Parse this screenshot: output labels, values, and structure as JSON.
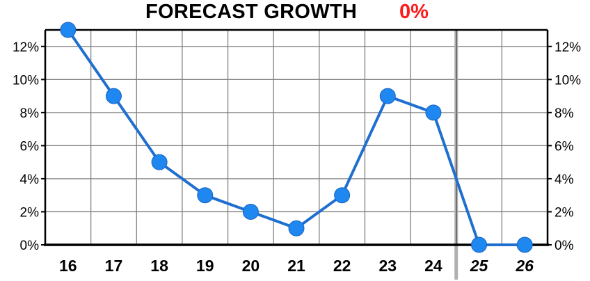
{
  "title": {
    "main": "FORECAST GROWTH",
    "value": "0%"
  },
  "colors": {
    "line": "#1f6fd0",
    "marker": "#1e88f0",
    "title_value": "#ff1a1a",
    "grid": "#808080",
    "projection_divider": "#b0b0b0"
  },
  "chart_data": {
    "type": "line",
    "title": "FORECAST GROWTH 0%",
    "categories": [
      "16",
      "17",
      "18",
      "19",
      "20",
      "21",
      "22",
      "23",
      "24",
      "25",
      "26"
    ],
    "projected_categories": [
      "25",
      "26"
    ],
    "series": [
      {
        "values": [
          13,
          9,
          5,
          3,
          2,
          1,
          3,
          9,
          8,
          0,
          0
        ]
      }
    ],
    "ylim": [
      0,
      13
    ],
    "y_ticks": [
      0,
      2,
      4,
      6,
      8,
      10,
      12
    ],
    "y_tick_labels": [
      "0%",
      "2%",
      "4%",
      "6%",
      "8%",
      "10%",
      "12%"
    ],
    "y_axes": "both",
    "grid": true
  }
}
